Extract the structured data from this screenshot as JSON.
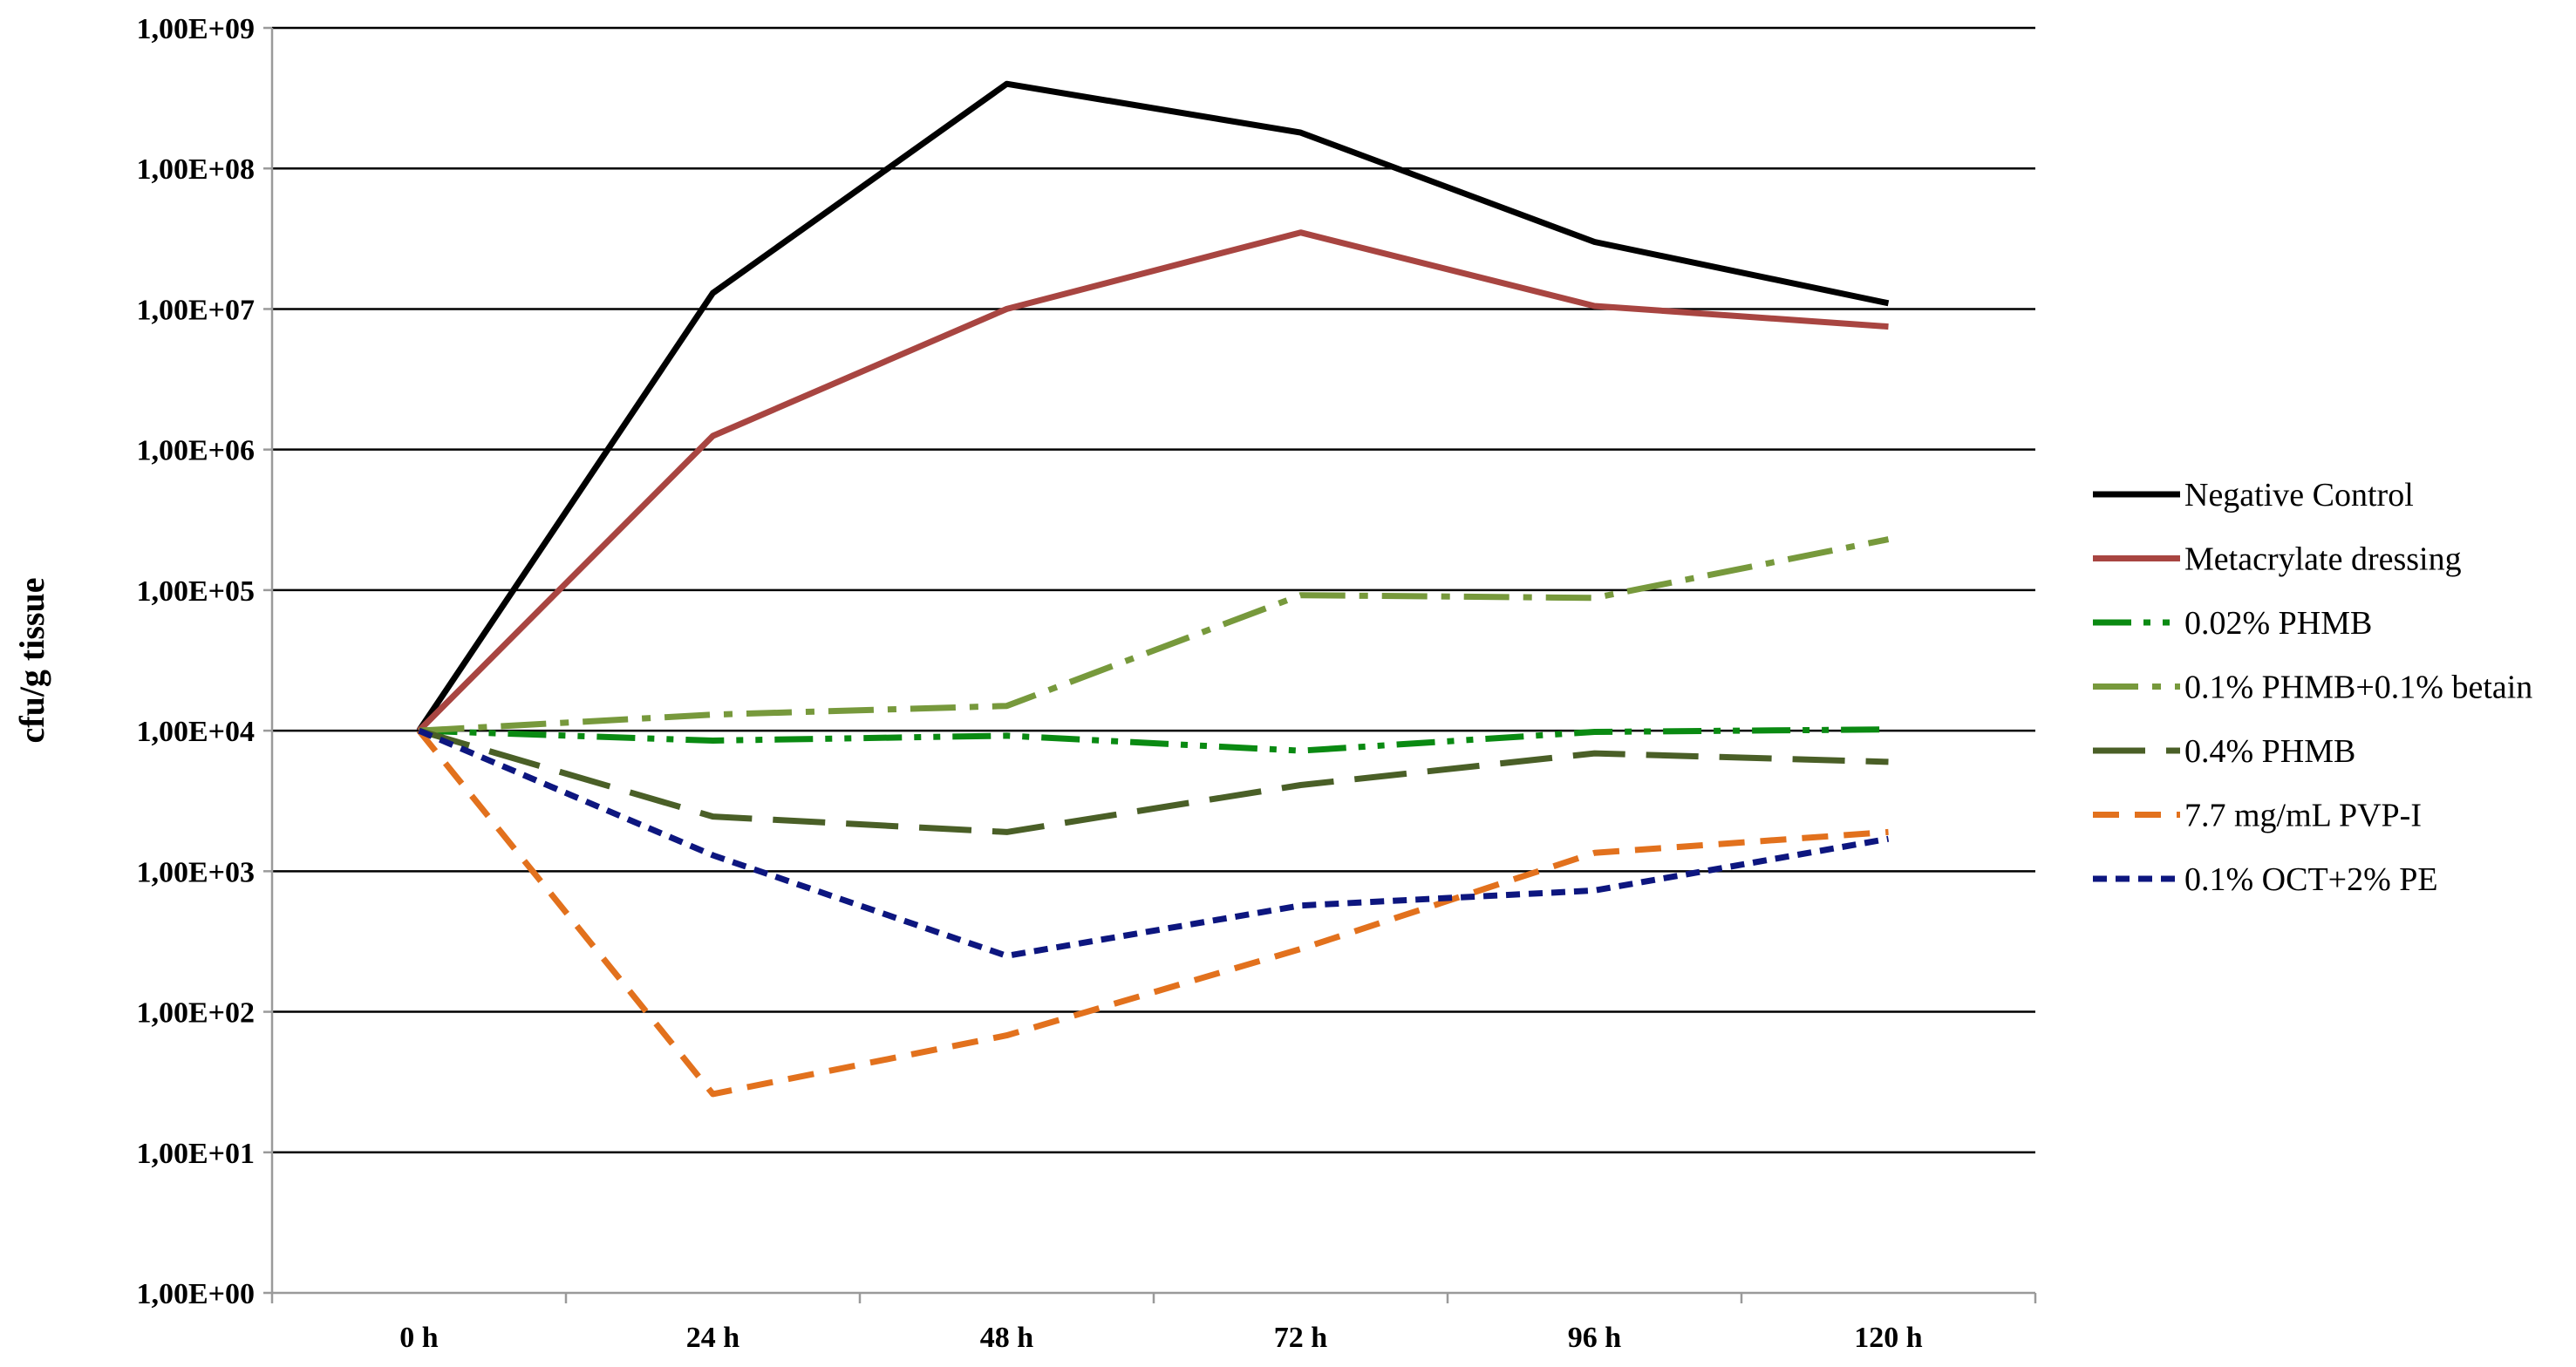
{
  "chart_data": {
    "type": "line",
    "title": "",
    "xlabel": "",
    "ylabel": "cfu/g tissue",
    "y_scale": "log",
    "ylim": [
      1,
      1000000000
    ],
    "y_ticks": [
      {
        "value": 1,
        "label": "1,00E+00"
      },
      {
        "value": 10,
        "label": "1,00E+01"
      },
      {
        "value": 100,
        "label": "1,00E+02"
      },
      {
        "value": 1000,
        "label": "1,00E+03"
      },
      {
        "value": 10000,
        "label": "1,00E+04"
      },
      {
        "value": 100000,
        "label": "1,00E+05"
      },
      {
        "value": 1000000,
        "label": "1,00E+06"
      },
      {
        "value": 10000000,
        "label": "1,00E+07"
      },
      {
        "value": 100000000,
        "label": "1,00E+08"
      },
      {
        "value": 1000000000,
        "label": "1,00E+09"
      }
    ],
    "categories": [
      "0 h",
      "24 h",
      "48 h",
      "72 h",
      "96 h",
      "120 h"
    ],
    "grid": true,
    "legend_position": "right",
    "series": [
      {
        "name": "Negative Control",
        "color": "#000000",
        "dash": "solid",
        "values": [
          10000,
          13000000,
          400000000,
          180000000,
          30000000,
          11000000
        ]
      },
      {
        "name": "Metacrylate dressing",
        "color": "#a84541",
        "dash": "solid",
        "values": [
          10000,
          1250000,
          10000000,
          35000000,
          10500000,
          7500000
        ]
      },
      {
        "name": "0.02% PHMB",
        "color": "#0a8a12",
        "dash": "dash-dot-dot",
        "values": [
          10000,
          8500,
          9200,
          7200,
          9800,
          10200
        ]
      },
      {
        "name": "0.1% PHMB+0.1% betain",
        "color": "#77993c",
        "dash": "long-dash-dot",
        "values": [
          10000,
          13000,
          15000,
          92000,
          88000,
          230000
        ]
      },
      {
        "name": "0.4% PHMB",
        "color": "#4a5f27",
        "dash": "long-dash",
        "values": [
          10000,
          2450,
          1900,
          4100,
          6900,
          6000
        ]
      },
      {
        "name": "7.7 mg/mL PVP-I",
        "color": "#e2711d",
        "dash": "dash",
        "values": [
          10000,
          26,
          68,
          280,
          1350,
          1900
        ]
      },
      {
        "name": "0.1% OCT+2% PE",
        "color": "#0d167f",
        "dash": "short-dash",
        "values": [
          10000,
          1300,
          250,
          570,
          730,
          1700
        ]
      }
    ]
  }
}
